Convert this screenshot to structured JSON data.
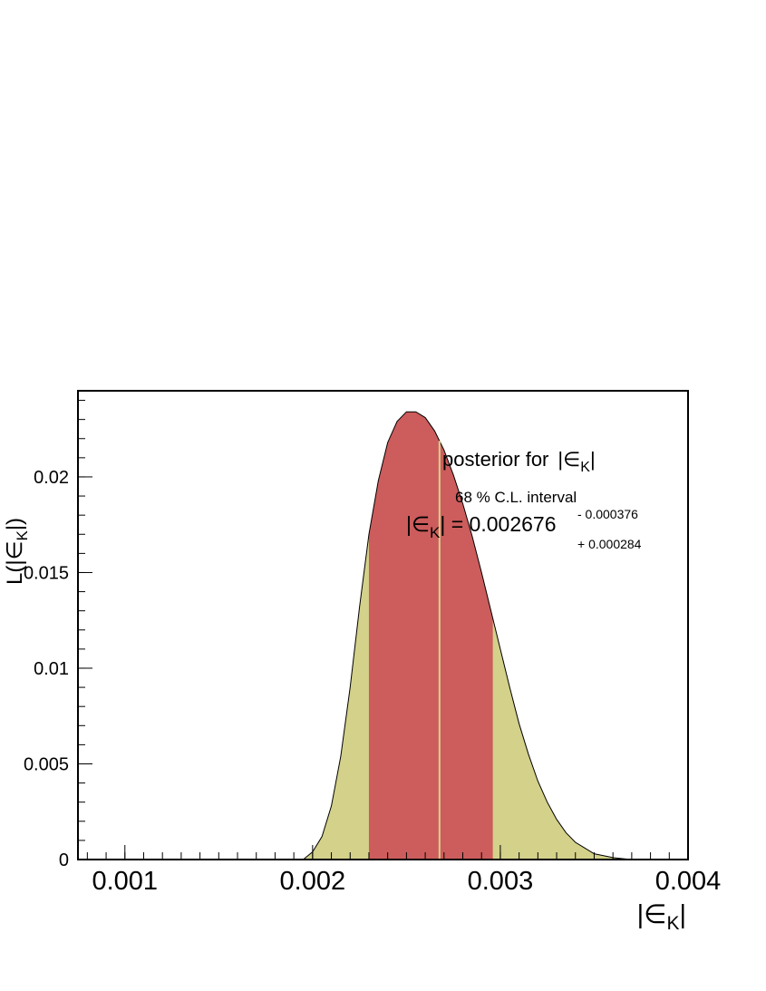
{
  "chart_data": {
    "type": "area",
    "title": "",
    "xlabel": "|∈K|",
    "ylabel": "L(|∈K|)",
    "xlabel_parts": {
      "pre": "|∈",
      "sub": "K",
      "post": "|"
    },
    "ylabel_parts": {
      "pre": "L(|∈",
      "sub": "K",
      "post": "|)"
    },
    "xlim": [
      0.00075,
      0.004
    ],
    "ylim": [
      0,
      0.0245
    ],
    "x_ticks": [
      0.001,
      0.002,
      0.003,
      0.004
    ],
    "x_tick_labels": [
      "0.001",
      "0.002",
      "0.003",
      "0.004"
    ],
    "y_ticks": [
      0,
      0.005,
      0.01,
      0.015,
      0.02
    ],
    "y_tick_labels": [
      "0",
      "0.005",
      "0.01",
      "0.015",
      "0.02"
    ],
    "grid": false,
    "series": [
      {
        "x": [
          0.00195,
          0.002,
          0.00205,
          0.0021,
          0.00215,
          0.0022,
          0.00225,
          0.0023,
          0.00235,
          0.0024,
          0.00245,
          0.0025,
          0.00255,
          0.0026,
          0.00265,
          0.0027,
          0.00275,
          0.0028,
          0.00285,
          0.0029,
          0.00295,
          0.003,
          0.00305,
          0.0031,
          0.00315,
          0.0032,
          0.00325,
          0.0033,
          0.00335,
          0.0034,
          0.00345,
          0.0035,
          0.00355,
          0.0036,
          0.00365,
          0.0037
        ],
        "y": [
          0.0,
          0.0004,
          0.0012,
          0.0028,
          0.0054,
          0.009,
          0.0132,
          0.017,
          0.0198,
          0.0218,
          0.0229,
          0.0234,
          0.0234,
          0.0231,
          0.0224,
          0.0214,
          0.0201,
          0.0186,
          0.0169,
          0.015,
          0.013,
          0.011,
          0.009,
          0.0071,
          0.0055,
          0.0041,
          0.003,
          0.0021,
          0.0014,
          0.0009,
          0.0006,
          0.0003,
          0.0002,
          0.0001,
          5e-05,
          0.0
        ]
      }
    ],
    "interval_68": [
      0.0023,
      0.00296
    ],
    "central_value": 0.002676,
    "colors": {
      "posterior_fill": "#d3d18a",
      "interval_fill": "#cd5c5c",
      "central_line": "#d3d18a",
      "outline": "#000000"
    }
  },
  "annotations": {
    "posterior_label": "posterior for",
    "posterior_var": {
      "pre": "|∈",
      "sub": "K",
      "post": "|"
    },
    "interval_label": "68 % C.L. interval",
    "value_var": {
      "pre": "|∈",
      "sub": "K",
      "post": "|"
    },
    "value_text": " = 0.002676",
    "minus_err": "- 0.000376",
    "plus_err": "+ 0.000284"
  }
}
